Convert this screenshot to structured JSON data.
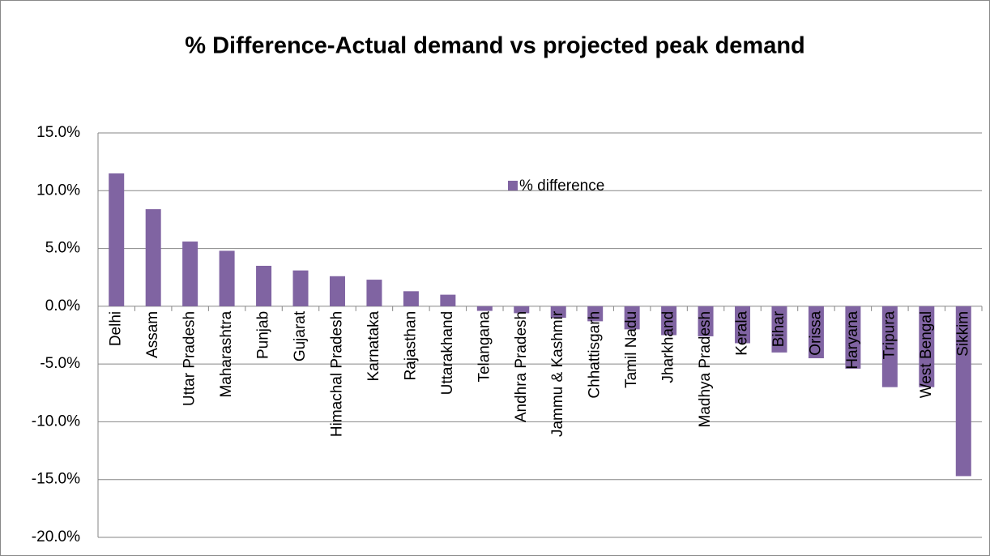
{
  "chart_data": {
    "type": "bar",
    "title": "% Difference-Actual demand vs projected peak demand",
    "categories": [
      "Delhi",
      "Assam",
      "Uttar Pradesh",
      "Maharashtra",
      "Punjab",
      "Gujarat",
      "Himachal Pradesh",
      "Karnataka",
      "Rajasthan",
      "Uttarakhand",
      "Telangana",
      "Andhra Pradesh",
      "Jammu & Kashmir",
      "Chhattisgarh",
      "Tamil Nadu",
      "Jharkhand",
      "Madhya Pradesh",
      "Kerala",
      "Bihar",
      "Orissa",
      "Haryana",
      "Tripura",
      "West Bengal",
      "Sikkim"
    ],
    "series": [
      {
        "name": "% difference",
        "color": "#8064a2",
        "values": [
          11.5,
          8.4,
          5.6,
          4.8,
          3.5,
          3.1,
          2.6,
          2.3,
          1.3,
          1.0,
          -0.4,
          -0.6,
          -1.0,
          -1.3,
          -2.0,
          -2.5,
          -2.6,
          -3.2,
          -4.0,
          -4.5,
          -5.4,
          -7.0,
          -7.0,
          -14.7
        ]
      }
    ],
    "ylim": [
      -20,
      15
    ],
    "yticks": [
      {
        "value": -20,
        "label": "-20.0%"
      },
      {
        "value": -15,
        "label": "-15.0%"
      },
      {
        "value": -10,
        "label": "-10.0%"
      },
      {
        "value": -5,
        "label": "-5.0%"
      },
      {
        "value": 0,
        "label": "0.0%"
      },
      {
        "value": 5,
        "label": "5.0%"
      },
      {
        "value": 10,
        "label": "10.0%"
      },
      {
        "value": 15,
        "label": "15.0%"
      }
    ],
    "grid": true
  }
}
